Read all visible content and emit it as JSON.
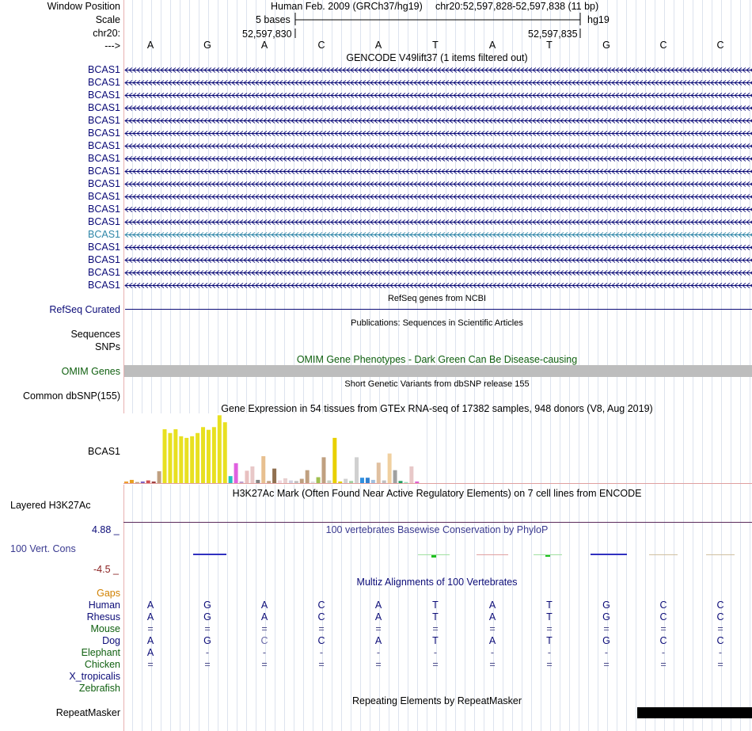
{
  "header": {
    "window_position_label": "Window Position",
    "scale_label": "Scale",
    "chrom_label": "chr20:",
    "arrow_label": "--->",
    "assembly_text": "Human Feb. 2009 (GRCh37/hg19)",
    "position_text": "chr20:52,597,828-52,597,838 (11 bp)",
    "scale_text": "5 bases",
    "db_text": "hg19",
    "coord_left": "52,597,830",
    "coord_right": "52,597,835"
  },
  "bases": [
    "A",
    "G",
    "A",
    "C",
    "A",
    "T",
    "A",
    "T",
    "G",
    "C",
    "C"
  ],
  "gencode": {
    "title": "GENCODE V49lift37 (1 items filtered out)",
    "genes": [
      "BCAS1",
      "BCAS1",
      "BCAS1",
      "BCAS1",
      "BCAS1",
      "BCAS1",
      "BCAS1",
      "BCAS1",
      "BCAS1",
      "BCAS1",
      "BCAS1",
      "BCAS1",
      "BCAS1",
      "BCAS1",
      "BCAS1",
      "BCAS1",
      "BCAS1",
      "BCAS1"
    ],
    "highlight_index": 13
  },
  "refseq": {
    "title": "RefSeq genes from NCBI",
    "label": "RefSeq Curated"
  },
  "publications": {
    "title": "Publications: Sequences in Scientific Articles",
    "label1": "Sequences",
    "label2": "SNPs"
  },
  "omim": {
    "title": "OMIM Gene Phenotypes - Dark Green Can Be Disease-causing",
    "label": "OMIM Genes"
  },
  "dbsnp": {
    "title": "Short Genetic Variants from dbSNP release 155",
    "label": "Common dbSNP(155)"
  },
  "gtex": {
    "title": "Gene Expression in 54 tissues from GTEx RNA-seq of 17382 samples, 948 donors (V8, Aug 2019)",
    "label": "BCAS1",
    "bars": [
      {
        "v": 3,
        "c": "#f0a030"
      },
      {
        "v": 6,
        "c": "#e8a020"
      },
      {
        "v": 2,
        "c": "#c0a080"
      },
      {
        "v": 3,
        "c": "#8060c0"
      },
      {
        "v": 5,
        "c": "#d05050"
      },
      {
        "v": 3,
        "c": "#a04040"
      },
      {
        "v": 22,
        "c": "#c0a080"
      },
      {
        "v": 100,
        "c": "#e8e020"
      },
      {
        "v": 93,
        "c": "#e8e020"
      },
      {
        "v": 100,
        "c": "#e8e020"
      },
      {
        "v": 87,
        "c": "#e8e020"
      },
      {
        "v": 84,
        "c": "#e8e020"
      },
      {
        "v": 87,
        "c": "#e8e020"
      },
      {
        "v": 93,
        "c": "#e8e020"
      },
      {
        "v": 104,
        "c": "#e8e020"
      },
      {
        "v": 99,
        "c": "#e8e020"
      },
      {
        "v": 104,
        "c": "#e8e020"
      },
      {
        "v": 126,
        "c": "#e8e020"
      },
      {
        "v": 113,
        "c": "#e8e020"
      },
      {
        "v": 13,
        "c": "#20c0c0"
      },
      {
        "v": 37,
        "c": "#e060e0"
      },
      {
        "v": 3,
        "c": "#c0a0d0"
      },
      {
        "v": 23,
        "c": "#e8c0c0"
      },
      {
        "v": 31,
        "c": "#e8c8c8"
      },
      {
        "v": 6,
        "c": "#808080"
      },
      {
        "v": 50,
        "c": "#e8c090"
      },
      {
        "v": 4,
        "c": "#c0a080"
      },
      {
        "v": 27,
        "c": "#907050"
      },
      {
        "v": 5,
        "c": "#f0d8e0"
      },
      {
        "v": 9,
        "c": "#e8d0d0"
      },
      {
        "v": 5,
        "c": "#d0d0e0"
      },
      {
        "v": 4,
        "c": "#c0c0c0"
      },
      {
        "v": 8,
        "c": "#c0a080"
      },
      {
        "v": 24,
        "c": "#c0a080"
      },
      {
        "v": 3,
        "c": "#e0e0e0"
      },
      {
        "v": 11,
        "c": "#a0c050"
      },
      {
        "v": 48,
        "c": "#c0a080"
      },
      {
        "v": 5,
        "c": "#c8d0c0"
      },
      {
        "v": 84,
        "c": "#e8d000"
      },
      {
        "v": 3,
        "c": "#e0d000"
      },
      {
        "v": 8,
        "c": "#d0d0d0"
      },
      {
        "v": 4,
        "c": "#a0d0a0"
      },
      {
        "v": 48,
        "c": "#d0d0d0"
      },
      {
        "v": 10,
        "c": "#3090e0"
      },
      {
        "v": 10,
        "c": "#3080d0"
      },
      {
        "v": 6,
        "c": "#a0c0e0"
      },
      {
        "v": 38,
        "c": "#e0c0a0"
      },
      {
        "v": 5,
        "c": "#c0c0c0"
      },
      {
        "v": 55,
        "c": "#f0d0a0"
      },
      {
        "v": 24,
        "c": "#a0a0a0"
      },
      {
        "v": 4,
        "c": "#20a060"
      },
      {
        "v": 2,
        "c": "#a0e0c0"
      },
      {
        "v": 31,
        "c": "#e8c8c8"
      },
      {
        "v": 3,
        "c": "#e060d0"
      }
    ]
  },
  "h3k27ac": {
    "title": "H3K27Ac Mark (Often Found Near Active Regulatory Elements) on 7 cell lines from ENCODE",
    "label": "Layered H3K27Ac"
  },
  "phylop": {
    "title": "100 vertebrates Basewise Conservation by PhyloP",
    "label": "100 Vert. Cons",
    "max": "4.88 _",
    "min": "-4.5 _"
  },
  "multiz": {
    "title": "Multiz Alignments of 100 Vertebrates",
    "gaps_label": "Gaps",
    "species": [
      {
        "name": "Human",
        "color": "#0c0c78",
        "row": [
          "A",
          "G",
          "A",
          "C",
          "A",
          "T",
          "A",
          "T",
          "G",
          "C",
          "C"
        ]
      },
      {
        "name": "Rhesus",
        "color": "#0c0c78",
        "row": [
          "A",
          "G",
          "A",
          "C",
          "A",
          "T",
          "A",
          "T",
          "G",
          "C",
          "C"
        ]
      },
      {
        "name": "Mouse",
        "color": "#106010",
        "row": [
          "=",
          "=",
          "=",
          "=",
          "=",
          "=",
          "=",
          "=",
          "=",
          "=",
          "="
        ]
      },
      {
        "name": "Dog",
        "color": "#0c0c78",
        "row": [
          "A",
          "G",
          "C",
          "C",
          "A",
          "T",
          "A",
          "T",
          "G",
          "C",
          "C"
        ]
      },
      {
        "name": "Elephant",
        "color": "#106010",
        "row": [
          "A",
          "-",
          "-",
          "-",
          "-",
          "-",
          "-",
          "-",
          "-",
          "-",
          "-"
        ]
      },
      {
        "name": "Chicken",
        "color": "#106010",
        "row": [
          "=",
          "=",
          "=",
          "=",
          "=",
          "=",
          "=",
          "=",
          "=",
          "=",
          "="
        ]
      },
      {
        "name": "X_tropicalis",
        "color": "#0c0c78",
        "row": [
          "",
          "",
          "",
          "",
          "",
          "",
          "",
          "",
          "",
          "",
          ""
        ]
      },
      {
        "name": "Zebrafish",
        "color": "#106010",
        "row": [
          "",
          "",
          "",
          "",
          "",
          "",
          "",
          "",
          "",
          "",
          ""
        ]
      }
    ]
  },
  "repeatmasker": {
    "title": "Repeating Elements by RepeatMasker",
    "label": "RepeatMasker"
  }
}
